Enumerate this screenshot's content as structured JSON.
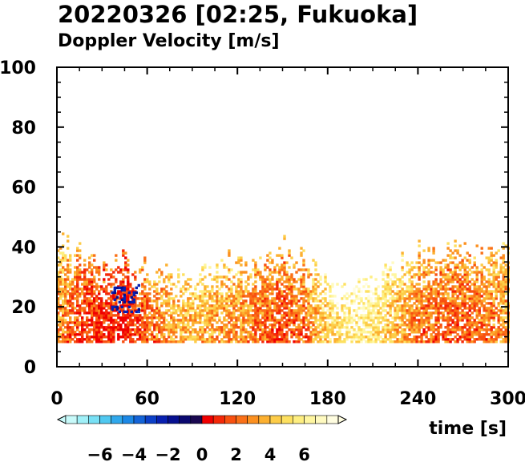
{
  "chart_data": {
    "type": "heatmap",
    "title": "20220326 [02:25, Fukuoka]",
    "subtitle": "Doppler Velocity [m/s]",
    "xlabel": "time [s]",
    "ylabel": "",
    "xlim": [
      0,
      300
    ],
    "ylim": [
      0,
      100
    ],
    "x_ticks": [
      0,
      60,
      120,
      180,
      240,
      300
    ],
    "y_ticks": [
      0,
      20,
      40,
      60,
      80,
      100
    ],
    "grid": false,
    "colorbar": {
      "ticks": [
        -6,
        -4,
        -2,
        0,
        2,
        4,
        6
      ],
      "range": [
        -8,
        8
      ],
      "colors": [
        "#c8fafa",
        "#a0f0f8",
        "#78e0f5",
        "#50c8f0",
        "#30a8ec",
        "#1c88e6",
        "#1464d8",
        "#0c40c8",
        "#0820b0",
        "#061090",
        "#0a0870",
        "#1a0850",
        "#f00000",
        "#f42808",
        "#f85010",
        "#fa7018",
        "#fc9020",
        "#fcb030",
        "#fdcc48",
        "#fde060",
        "#feee80",
        "#fff6a0",
        "#fffac0",
        "#fffde0"
      ]
    },
    "series": [
      {
        "z_units": "m/s",
        "precip_height_range": [
          8,
          45
        ],
        "time_columns": [
          0,
          15,
          30,
          45,
          60,
          75,
          90,
          105,
          120,
          135,
          150,
          165,
          180,
          195,
          210,
          225,
          240,
          255,
          270,
          285,
          300
        ],
        "mean_velocity_by_column": [
          3.5,
          2.0,
          1.5,
          1.0,
          2.5,
          4.0,
          4.5,
          4.0,
          3.5,
          3.0,
          2.0,
          3.0,
          5.5,
          6.5,
          6.0,
          4.5,
          3.0,
          2.5,
          2.5,
          3.0,
          3.5
        ],
        "echo_top_by_column": [
          42,
          38,
          34,
          36,
          32,
          30,
          28,
          34,
          36,
          35,
          40,
          36,
          28,
          26,
          30,
          34,
          38,
          40,
          38,
          36,
          40
        ]
      }
    ]
  }
}
